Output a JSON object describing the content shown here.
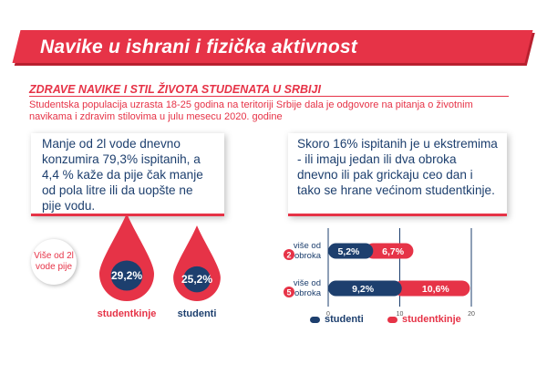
{
  "header": {
    "title": "Navike u ishrani i fizička aktivnost"
  },
  "section": {
    "subtitle": "ZDRAVE NAVIKE I STIL ŽIVOTA STUDENATA U SRBIJI",
    "intro": "Studentska populacija uzrasta 18-25 godina na teritoriji Srbije dala je odgovore na pitanja o životnim navikama i zdravim stilovima u julu mesecu 2020. godine"
  },
  "water": {
    "text": "Manje od 2l vode dnevno konzumira 79,3% ispitanih, a 4,4 % kaže da pije čak manje od pola litre ili da uopšte ne pije vodu.",
    "badge": "Više od 2l vode pije"
  },
  "meals": {
    "text": "Skoro 16% ispitanih je u ekstremima - ili imaju jedan ili dva obroka dnevno ili pak grickaju ceo dan i tako se hrane većinom studentkinje."
  },
  "colors": {
    "red": "#e63347",
    "navy": "#1d3f6e"
  },
  "chart_data": [
    {
      "type": "bar",
      "title": "Više od 2l vode pije",
      "categories": [
        "studentkinje",
        "studenti"
      ],
      "values": [
        29.2,
        25.2
      ],
      "value_labels": [
        "29,2%",
        "25,2%"
      ],
      "colors": [
        "#e63347",
        "#1d3f6e"
      ]
    },
    {
      "type": "bar",
      "orientation": "horizontal",
      "stacked": true,
      "categories": [
        {
          "number": "2",
          "label": "više od obroka"
        },
        {
          "number": "5",
          "label": "više od obroka"
        }
      ],
      "series": [
        {
          "name": "studenti",
          "values": [
            5.2,
            9.2
          ],
          "labels": [
            "5,2%",
            "9,2%"
          ],
          "color": "#1d3f6e"
        },
        {
          "name": "studentkinje",
          "values": [
            6.7,
            10.6
          ],
          "labels": [
            "6,7%",
            "10,6%"
          ],
          "color": "#e63347"
        }
      ],
      "xticks": [
        "0",
        "10",
        "20"
      ],
      "xlim": [
        0,
        20
      ],
      "grid": true,
      "legend": "bottom"
    }
  ]
}
